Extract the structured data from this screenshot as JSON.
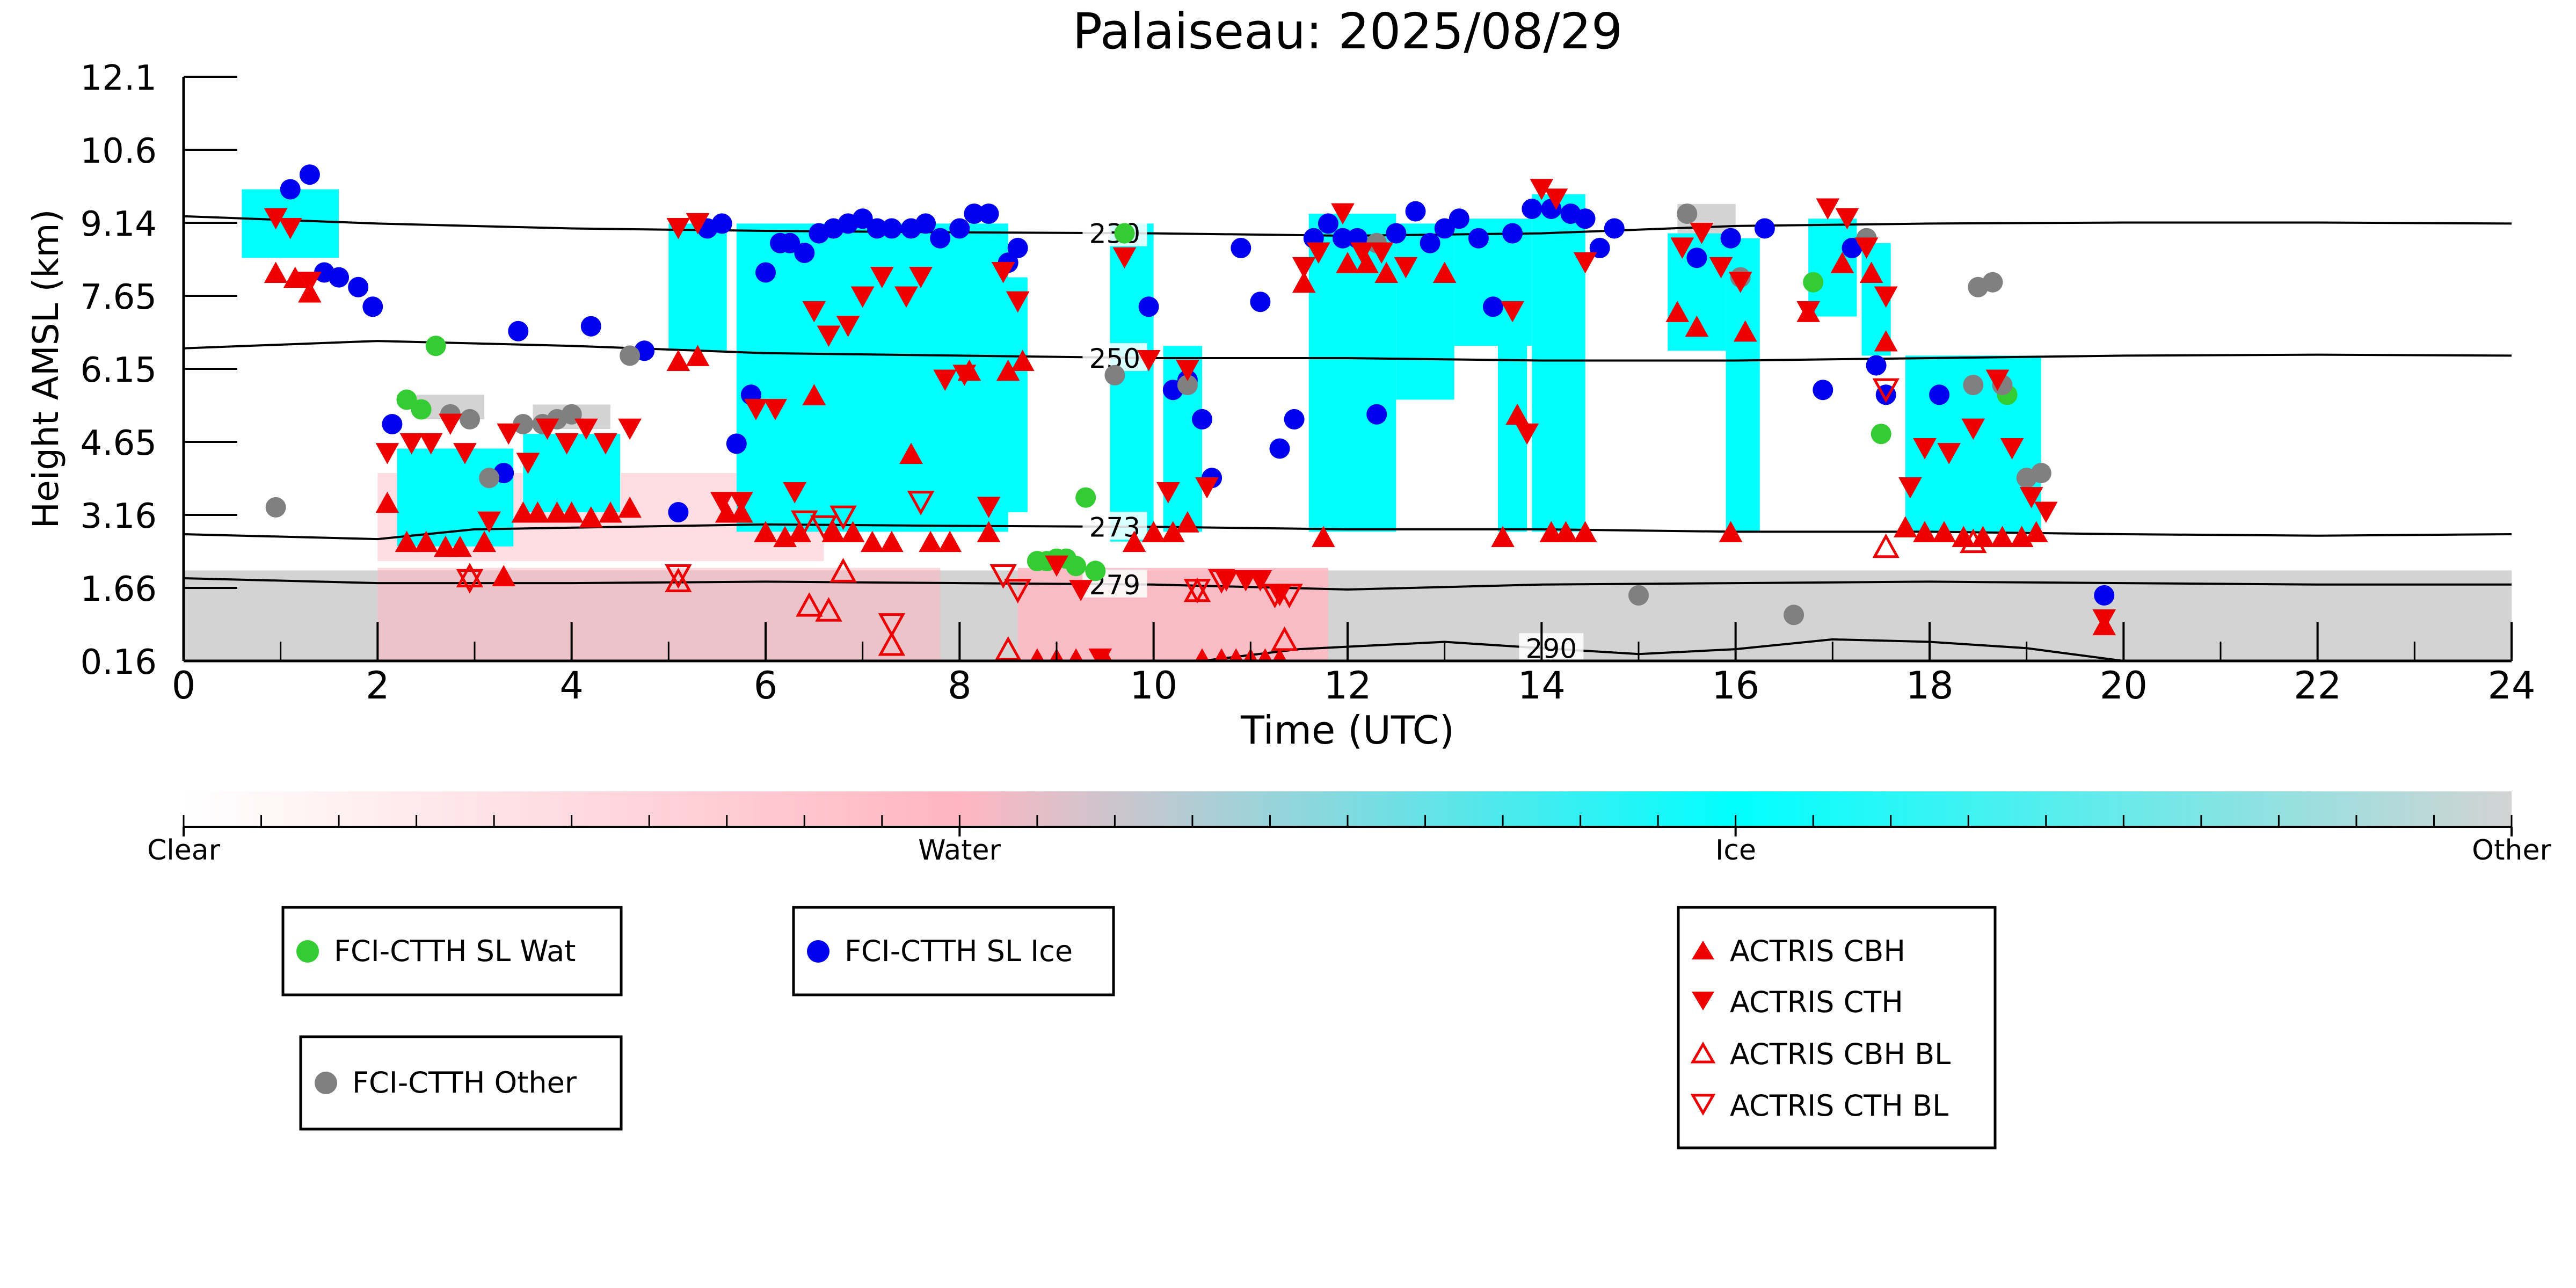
{
  "chart_data": {
    "type": "scatter",
    "title": "Palaiseau: 2025/08/29",
    "xlabel": "Time (UTC)",
    "ylabel": "Height AMSL (km)",
    "xlim": [
      0,
      24
    ],
    "ylim": [
      0.16,
      12.1
    ],
    "x_ticks": [
      0,
      2,
      4,
      6,
      8,
      10,
      12,
      14,
      16,
      18,
      20,
      22,
      24
    ],
    "y_tick_labels": [
      "0.16",
      "1.66",
      "3.16",
      "4.65",
      "6.15",
      "7.65",
      "9.14",
      "10.6",
      "12.1"
    ],
    "background_colors": {
      "water": "#ffb6c1",
      "ice": "#00ffff",
      "other": "#d3d3d3"
    },
    "contours": [
      {
        "label": "230",
        "points": [
          [
            0,
            9.25
          ],
          [
            2,
            9.1
          ],
          [
            4,
            9.0
          ],
          [
            6,
            8.95
          ],
          [
            8,
            8.92
          ],
          [
            10,
            8.9
          ],
          [
            12,
            8.85
          ],
          [
            14,
            8.9
          ],
          [
            16,
            9.05
          ],
          [
            18,
            9.1
          ],
          [
            20,
            9.12
          ],
          [
            22,
            9.12
          ],
          [
            24,
            9.1
          ]
        ]
      },
      {
        "label": "250",
        "points": [
          [
            0,
            6.55
          ],
          [
            2,
            6.7
          ],
          [
            4,
            6.6
          ],
          [
            6,
            6.45
          ],
          [
            8,
            6.4
          ],
          [
            10,
            6.35
          ],
          [
            12,
            6.35
          ],
          [
            14,
            6.3
          ],
          [
            16,
            6.3
          ],
          [
            18,
            6.35
          ],
          [
            20,
            6.4
          ],
          [
            22,
            6.42
          ],
          [
            24,
            6.4
          ]
        ]
      },
      {
        "label": "273",
        "points": [
          [
            0,
            2.75
          ],
          [
            2,
            2.65
          ],
          [
            3,
            2.85
          ],
          [
            6,
            2.95
          ],
          [
            8,
            2.92
          ],
          [
            10,
            2.9
          ],
          [
            12,
            2.85
          ],
          [
            14,
            2.85
          ],
          [
            16,
            2.8
          ],
          [
            18,
            2.8
          ],
          [
            20,
            2.75
          ],
          [
            22,
            2.72
          ],
          [
            24,
            2.75
          ]
        ]
      },
      {
        "label": "279",
        "points": [
          [
            0,
            1.85
          ],
          [
            2,
            1.75
          ],
          [
            4,
            1.75
          ],
          [
            6,
            1.78
          ],
          [
            8,
            1.75
          ],
          [
            10,
            1.72
          ],
          [
            12,
            1.62
          ],
          [
            14,
            1.72
          ],
          [
            16,
            1.75
          ],
          [
            18,
            1.78
          ],
          [
            20,
            1.75
          ],
          [
            22,
            1.72
          ],
          [
            24,
            1.72
          ]
        ]
      },
      {
        "label": "290",
        "points": [
          [
            10.5,
            0.16
          ],
          [
            11.5,
            0.4
          ],
          [
            13,
            0.55
          ],
          [
            14,
            0.42
          ],
          [
            15,
            0.3
          ],
          [
            16,
            0.4
          ],
          [
            17,
            0.6
          ],
          [
            18,
            0.55
          ],
          [
            19,
            0.42
          ],
          [
            20,
            0.16
          ]
        ]
      }
    ],
    "colorbar": {
      "labels": [
        "Clear",
        "Water",
        "Ice",
        "Other"
      ],
      "colors": [
        "#ffffff",
        "#ffb6c1",
        "#00ffff",
        "#d3d3d3"
      ]
    },
    "series": [
      {
        "name": "FCI-CTTH SL Wat",
        "color": "#33cc33",
        "marker": "circle",
        "x": [
          2.3,
          2.45,
          2.6,
          9.2,
          9.3,
          8.8,
          8.9,
          9.0,
          9.1,
          9.4,
          9.7,
          16.8,
          17.5,
          18.8
        ],
        "y": [
          5.5,
          5.3,
          6.6,
          2.1,
          3.5,
          2.2,
          2.2,
          2.25,
          2.25,
          2.0,
          8.9,
          7.9,
          4.8,
          5.6
        ]
      },
      {
        "name": "FCI-CTTH SL Ice",
        "color": "#0000ee",
        "marker": "circle",
        "x": [
          1.1,
          1.3,
          1.45,
          1.6,
          1.8,
          1.95,
          2.15,
          3.3,
          3.45,
          4.2,
          4.75,
          5.1,
          5.4,
          5.55,
          5.7,
          5.85,
          6.0,
          6.15,
          6.25,
          6.4,
          6.55,
          6.7,
          6.85,
          7.0,
          7.15,
          7.3,
          7.5,
          7.65,
          7.8,
          8.0,
          8.15,
          8.3,
          8.5,
          8.6,
          9.95,
          10.2,
          10.35,
          10.5,
          10.6,
          10.9,
          11.1,
          11.3,
          11.45,
          11.65,
          11.8,
          11.95,
          12.1,
          12.3,
          12.5,
          12.7,
          12.85,
          13.0,
          13.15,
          13.35,
          13.5,
          13.7,
          13.9,
          14.1,
          14.3,
          14.45,
          14.6,
          14.75,
          15.6,
          15.95,
          16.3,
          16.9,
          17.2,
          17.45,
          17.55,
          18.1,
          19.8
        ],
        "y": [
          9.8,
          10.1,
          8.1,
          8.0,
          7.8,
          7.4,
          5.0,
          4.0,
          6.9,
          7.0,
          6.5,
          3.2,
          9.0,
          9.1,
          4.6,
          5.6,
          8.1,
          8.7,
          8.7,
          8.5,
          8.9,
          9.0,
          9.1,
          9.2,
          9.0,
          9.0,
          9.0,
          9.1,
          8.8,
          9.0,
          9.3,
          9.3,
          8.3,
          8.6,
          7.4,
          5.7,
          5.9,
          5.1,
          3.9,
          8.6,
          7.5,
          4.5,
          5.1,
          8.8,
          9.1,
          8.8,
          8.8,
          5.2,
          8.9,
          9.35,
          8.7,
          9.0,
          9.2,
          8.8,
          7.4,
          8.9,
          9.4,
          9.4,
          9.3,
          9.2,
          8.6,
          9.0,
          8.4,
          8.8,
          9.0,
          5.7,
          8.6,
          6.2,
          5.6,
          5.6,
          1.5
        ]
      },
      {
        "name": "FCI-CTTH Other",
        "color": "#808080",
        "marker": "circle",
        "x": [
          0.95,
          2.75,
          2.95,
          3.15,
          3.5,
          3.7,
          3.85,
          4.0,
          4.6,
          9.6,
          10.35,
          12.3,
          15.0,
          15.5,
          16.05,
          16.6,
          17.35,
          18.45,
          18.5,
          18.65,
          18.75,
          19.0,
          19.15
        ],
        "y": [
          3.3,
          5.2,
          5.1,
          3.9,
          5.0,
          5.0,
          5.1,
          5.2,
          6.4,
          6.0,
          5.8,
          8.7,
          1.5,
          9.3,
          8.0,
          1.1,
          8.8,
          5.8,
          7.8,
          7.9,
          5.8,
          3.9,
          4.0
        ]
      },
      {
        "name": "ACTRIS CBH",
        "color": "#ee0000",
        "marker": "triangle-up",
        "x": [
          0.95,
          1.15,
          1.3,
          2.1,
          2.3,
          2.5,
          2.7,
          2.85,
          3.1,
          3.3,
          3.5,
          3.65,
          3.85,
          4.0,
          4.2,
          4.4,
          4.6,
          5.1,
          5.3,
          5.6,
          5.75,
          6.0,
          6.2,
          6.35,
          6.5,
          6.7,
          6.9,
          7.1,
          7.3,
          7.5,
          7.7,
          7.9,
          8.1,
          8.3,
          8.5,
          8.65,
          8.8,
          9.0,
          9.2,
          9.5,
          9.8,
          10.0,
          10.2,
          10.35,
          10.5,
          10.7,
          10.85,
          11.0,
          11.15,
          11.3,
          11.55,
          11.75,
          12.0,
          12.2,
          12.4,
          13.0,
          13.6,
          13.75,
          14.1,
          14.25,
          14.45,
          15.4,
          15.6,
          15.95,
          16.1,
          16.75,
          17.1,
          17.4,
          17.55,
          17.75,
          17.95,
          18.15,
          18.35,
          18.55,
          18.75,
          18.95,
          19.1,
          19.8
        ],
        "y": [
          8.1,
          8.0,
          7.7,
          3.4,
          2.6,
          2.6,
          2.5,
          2.5,
          2.6,
          1.9,
          3.2,
          3.2,
          3.2,
          3.2,
          3.1,
          3.2,
          3.3,
          6.3,
          6.4,
          3.2,
          3.2,
          2.8,
          2.7,
          2.8,
          5.6,
          2.8,
          2.8,
          2.6,
          2.6,
          4.4,
          2.6,
          2.6,
          6.1,
          2.8,
          6.1,
          6.3,
          0.2,
          0.2,
          0.2,
          0.2,
          2.6,
          2.8,
          2.8,
          3.0,
          0.2,
          0.2,
          0.2,
          0.2,
          0.2,
          0.2,
          7.9,
          2.7,
          8.3,
          8.3,
          8.1,
          8.1,
          2.7,
          5.2,
          2.8,
          2.8,
          2.8,
          7.3,
          7.0,
          2.8,
          6.9,
          7.3,
          8.3,
          8.1,
          6.7,
          2.9,
          2.8,
          2.8,
          2.7,
          2.7,
          2.7,
          2.7,
          2.8,
          0.9
        ]
      },
      {
        "name": "ACTRIS CTH",
        "color": "#ee0000",
        "marker": "triangle-down",
        "x": [
          0.95,
          1.1,
          1.3,
          2.1,
          2.35,
          2.55,
          2.75,
          2.9,
          3.15,
          3.35,
          3.55,
          3.75,
          3.95,
          4.15,
          4.35,
          4.6,
          5.1,
          5.3,
          5.55,
          5.75,
          5.9,
          6.1,
          6.3,
          6.5,
          6.65,
          6.85,
          7.0,
          7.2,
          7.45,
          7.6,
          7.85,
          8.05,
          8.3,
          8.45,
          8.6,
          9.0,
          9.25,
          9.45,
          9.7,
          9.95,
          10.15,
          10.35,
          10.55,
          10.75,
          10.95,
          11.1,
          11.3,
          11.55,
          11.7,
          11.95,
          12.15,
          12.35,
          12.6,
          13.7,
          13.85,
          14.0,
          14.15,
          14.45,
          15.45,
          15.65,
          15.85,
          16.05,
          16.75,
          16.95,
          17.15,
          17.35,
          17.55,
          17.8,
          17.95,
          18.2,
          18.45,
          18.7,
          18.85,
          19.05,
          19.2,
          19.8
        ],
        "y": [
          9.2,
          9.0,
          7.9,
          4.4,
          4.6,
          4.6,
          5.0,
          4.4,
          3.0,
          4.8,
          4.2,
          4.9,
          4.6,
          4.9,
          4.6,
          4.9,
          9.0,
          9.1,
          3.4,
          3.4,
          5.3,
          5.3,
          3.6,
          7.3,
          6.8,
          7.0,
          7.6,
          8.0,
          7.6,
          8.0,
          5.9,
          6.0,
          3.3,
          8.1,
          7.5,
          2.1,
          1.6,
          0.2,
          8.4,
          6.3,
          3.6,
          6.1,
          3.7,
          1.8,
          1.8,
          1.8,
          1.5,
          8.2,
          8.5,
          9.3,
          8.5,
          8.5,
          8.2,
          7.3,
          4.8,
          9.8,
          9.6,
          8.3,
          8.6,
          8.9,
          8.2,
          7.9,
          7.3,
          9.4,
          9.2,
          8.6,
          7.6,
          3.7,
          4.5,
          4.4,
          4.9,
          5.9,
          4.5,
          3.5,
          3.2,
          1.0
        ]
      },
      {
        "name": "ACTRIS CBH BL",
        "color": "#ee0000",
        "marker": "triangle-up-open",
        "x": [
          2.95,
          5.1,
          6.45,
          6.65,
          6.8,
          7.3,
          8.5,
          10.45,
          11.35,
          17.55,
          18.45
        ],
        "y": [
          1.9,
          1.8,
          1.3,
          1.2,
          2.0,
          0.5,
          0.4,
          1.6,
          0.6,
          2.5,
          2.6
        ]
      },
      {
        "name": "ACTRIS CTH BL",
        "color": "#ee0000",
        "marker": "triangle-down-open",
        "x": [
          2.95,
          5.1,
          6.4,
          6.6,
          6.8,
          7.3,
          7.6,
          8.45,
          8.6,
          10.45,
          10.7,
          11.25,
          11.4,
          17.55
        ],
        "y": [
          1.8,
          1.9,
          3.0,
          2.9,
          3.1,
          0.9,
          3.4,
          1.9,
          1.6,
          1.6,
          1.8,
          1.5,
          1.5,
          5.7
        ]
      }
    ]
  }
}
